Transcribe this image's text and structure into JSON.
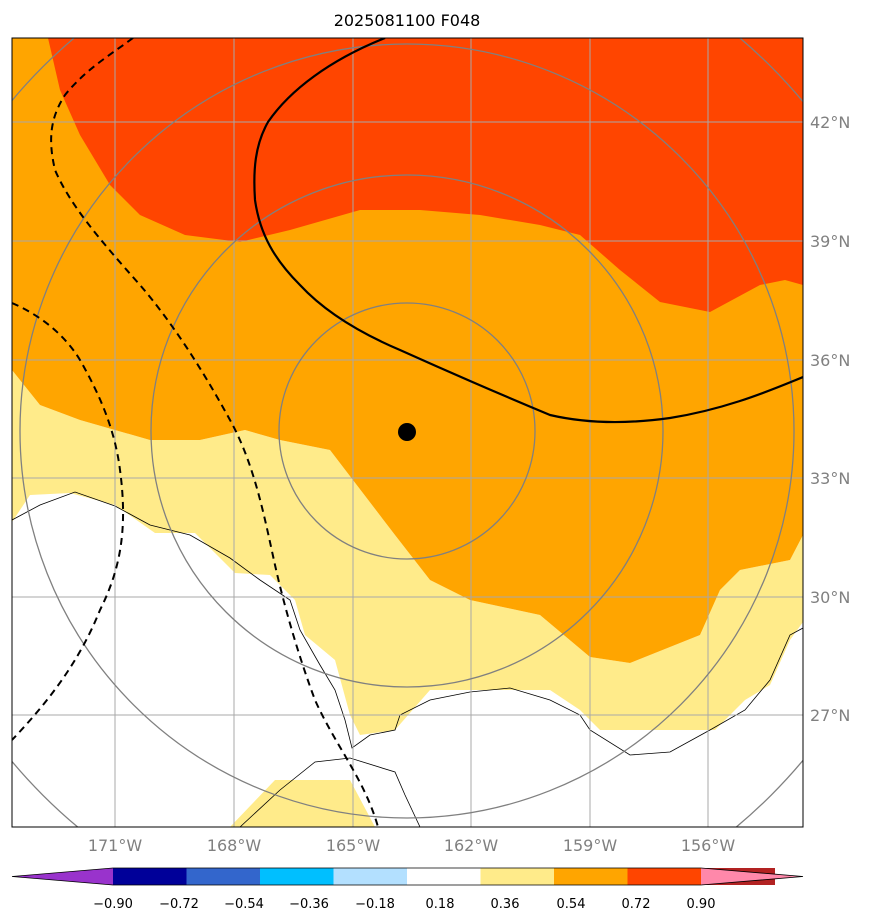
{
  "title": "2025081100 F048",
  "map": {
    "lat_labels": [
      "42°N",
      "39°N",
      "36°N",
      "33°N",
      "30°N",
      "27°N"
    ],
    "lon_labels": [
      "171°W",
      "168°W",
      "165°W",
      "162°W",
      "159°W",
      "156°W"
    ],
    "lat_values": [
      42,
      39,
      36,
      33,
      30,
      27
    ],
    "lon_values": [
      -171,
      -168,
      -165,
      -162,
      -159,
      -156
    ],
    "storm_center": {
      "lat": 34.1,
      "lon": -163.5
    }
  },
  "colorbar": {
    "tick_labels": [
      "−0.90",
      "−0.72",
      "−0.54",
      "−0.36",
      "−0.18",
      "0.18",
      "0.36",
      "0.54",
      "0.72",
      "0.90"
    ],
    "colors": [
      "#9933cc",
      "#000099",
      "#3366cc",
      "#00bfff",
      "#b3e0ff",
      "#ffffff",
      "#ffeb8a",
      "#ffa500",
      "#ff4500",
      "#b22222",
      "#ff88aa"
    ]
  },
  "colors": {
    "orange": "#ffa500",
    "orange_red": "#ff4500",
    "light_yellow": "#ffeb8a",
    "gridline": "#a8a8a8",
    "ring": "#808080"
  }
}
